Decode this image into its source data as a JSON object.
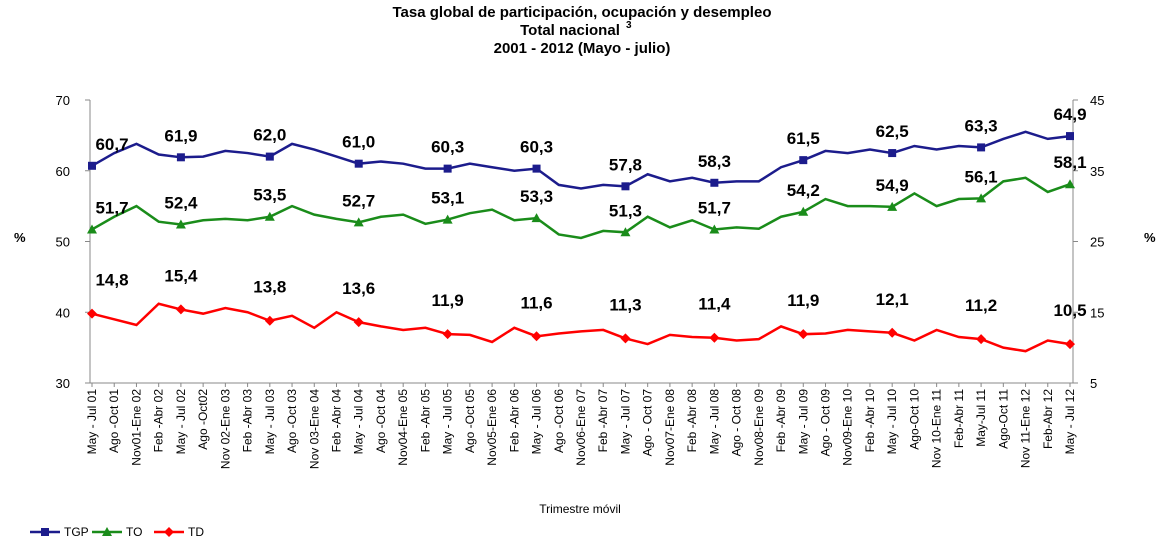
{
  "chart_data": {
    "type": "line",
    "title": "Tasa global de participación, ocupación y desempleo",
    "subtitle": "Total nacional",
    "subtitle_footnote": "3",
    "period": "2001 - 2012 (Mayo - julio)",
    "xlabel": "Trimestre móvil",
    "ylabel": "%",
    "y2label": "%",
    "categories": [
      "May - Jul 01",
      "Ago -Oct 01",
      "Nov01-Ene 02",
      "Feb -Abr 02",
      "May - Jul 02",
      "Ago -Oct02",
      "Nov 02-Ene 03",
      "Feb -Abr 03",
      "May - Jul 03",
      "Ago -Oct 03",
      "Nov 03-Ene 04",
      "Feb -Abr 04",
      "May - Jul 04",
      "Ago -Oct 04",
      "Nov04-Ene 05",
      "Feb -Abr 05",
      "May - Jul 05",
      "Ago -Oct 05",
      "Nov05-Ene 06",
      "Feb -Abr 06",
      "May - Jul 06",
      "Ago -Oct 06",
      "Nov06-Ene 07",
      "Feb -Abr 07",
      "May - Jul 07",
      "Ago - Oct 07",
      "Nov07-Ene 08",
      "Feb -Abr 08",
      "May - Jul 08",
      "Ago - Oct 08",
      "Nov08-Ene 09",
      "Feb -Abr 09",
      "May - Jul 09",
      "Ago - Oct 09",
      "Nov09-Ene 10",
      "Feb -Abr 10",
      "May - Jul 10",
      "Ago-Oct 10",
      "Nov 10-Ene 11",
      "Feb-Abr 11",
      "May-Jul 11",
      "Ago-Oct 11",
      "Nov 11-Ene 12",
      "Feb-Abr 12",
      "May - Jul 12"
    ],
    "ylim": [
      30,
      70
    ],
    "yticks": [
      30,
      40,
      50,
      60,
      70
    ],
    "y2lim": [
      5,
      45
    ],
    "y2ticks": [
      5,
      15,
      25,
      35,
      45
    ],
    "series": [
      {
        "name": "TGP",
        "color": "#1c1c8c",
        "marker": "square",
        "values": [
          60.7,
          62.5,
          63.8,
          62.3,
          61.9,
          62.0,
          62.8,
          62.5,
          62.0,
          63.8,
          63.0,
          62.0,
          61.0,
          61.3,
          61.0,
          60.3,
          60.3,
          61.0,
          60.5,
          60.0,
          60.3,
          58.0,
          57.5,
          58.0,
          57.8,
          59.5,
          58.5,
          59.0,
          58.3,
          58.5,
          58.5,
          60.5,
          61.5,
          62.8,
          62.5,
          63.0,
          62.5,
          63.5,
          63.0,
          63.5,
          63.3,
          64.5,
          65.5,
          64.5,
          64.9
        ],
        "value_labels": [
          "60,7",
          null,
          null,
          null,
          "61,9",
          null,
          null,
          null,
          "62,0",
          null,
          null,
          null,
          "61,0",
          null,
          null,
          null,
          "60,3",
          null,
          null,
          null,
          "60,3",
          null,
          null,
          null,
          "57,8",
          null,
          null,
          null,
          "58,3",
          null,
          null,
          null,
          "61,5",
          null,
          null,
          null,
          "62,5",
          null,
          null,
          null,
          "63,3",
          null,
          null,
          null,
          "64,9"
        ]
      },
      {
        "name": "TO",
        "color": "#1a8c1a",
        "marker": "triangle",
        "values": [
          51.7,
          53.5,
          55.0,
          52.8,
          52.4,
          53.0,
          53.2,
          53.0,
          53.5,
          55.0,
          53.8,
          53.2,
          52.7,
          53.5,
          53.8,
          52.5,
          53.1,
          54.0,
          54.5,
          53.0,
          53.3,
          51.0,
          50.5,
          51.5,
          51.3,
          53.5,
          52.0,
          53.0,
          51.7,
          52.0,
          51.8,
          53.5,
          54.2,
          56.0,
          55.0,
          55.0,
          54.9,
          56.8,
          55.0,
          56.0,
          56.1,
          58.5,
          59.0,
          57.0,
          58.1
        ],
        "value_labels": [
          "51,7",
          null,
          null,
          null,
          "52,4",
          null,
          null,
          null,
          "53,5",
          null,
          null,
          null,
          "52,7",
          null,
          null,
          null,
          "53,1",
          null,
          null,
          null,
          "53,3",
          null,
          null,
          null,
          "51,3",
          null,
          null,
          null,
          "51,7",
          null,
          null,
          null,
          "54,2",
          null,
          null,
          null,
          "54,9",
          null,
          null,
          null,
          "56,1",
          null,
          null,
          null,
          "58,1"
        ]
      },
      {
        "name": "TD",
        "color": "#ff0000",
        "marker": "diamond",
        "axis": "y2",
        "values": [
          14.8,
          14.0,
          13.2,
          16.2,
          15.4,
          14.8,
          15.6,
          15.0,
          13.8,
          14.5,
          12.8,
          15.0,
          13.6,
          13.0,
          12.5,
          12.8,
          11.9,
          11.8,
          10.8,
          12.8,
          11.6,
          12.0,
          12.3,
          12.5,
          11.3,
          10.5,
          11.8,
          11.5,
          11.4,
          11.0,
          11.2,
          13.0,
          11.9,
          12.0,
          12.5,
          12.3,
          12.1,
          11.0,
          12.5,
          11.5,
          11.2,
          10.0,
          9.5,
          11.0,
          10.5
        ],
        "value_labels": [
          "14,8",
          null,
          null,
          null,
          "15,4",
          null,
          null,
          null,
          "13,8",
          null,
          null,
          null,
          "13,6",
          null,
          null,
          null,
          "11,9",
          null,
          null,
          null,
          "11,6",
          null,
          null,
          null,
          "11,3",
          null,
          null,
          null,
          "11,4",
          null,
          null,
          null,
          "11,9",
          null,
          null,
          null,
          "12,1",
          null,
          null,
          null,
          "11,2",
          null,
          null,
          null,
          "10,5"
        ]
      }
    ]
  }
}
